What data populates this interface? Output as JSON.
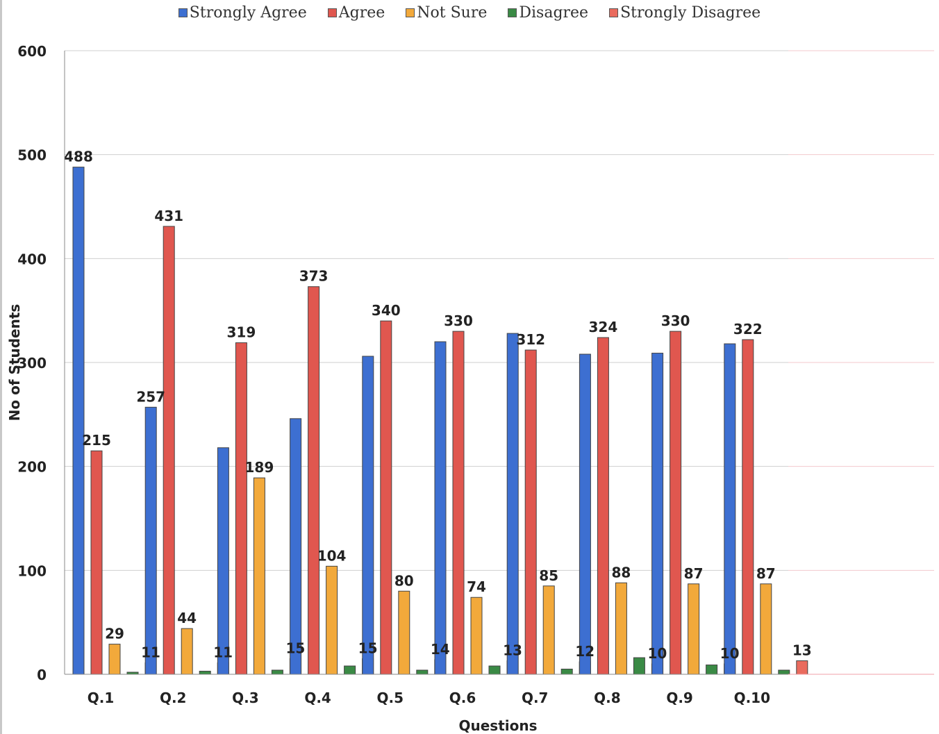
{
  "chart_data": {
    "type": "bar",
    "title": "",
    "xlabel": "Questions",
    "ylabel": "No of Students",
    "ylim": [
      0,
      600
    ],
    "yticks": [
      0,
      100,
      200,
      300,
      400,
      500,
      600
    ],
    "grid": true,
    "legend_position": "top",
    "categories": [
      "Q.1",
      "Q.2",
      "Q.3",
      "Q.4",
      "Q.5",
      "Q.6",
      "Q.7",
      "Q.8",
      "Q.9",
      "Q.10"
    ],
    "series": [
      {
        "name": "Strongly Agree",
        "color": "#3d6fd1",
        "values": [
          488,
          257,
          218,
          246,
          306,
          320,
          328,
          308,
          309,
          318
        ],
        "labels": [
          "488",
          "257",
          "",
          "",
          "",
          "",
          "",
          "",
          "",
          ""
        ]
      },
      {
        "name": "Agree",
        "color": "#e0574f",
        "values": [
          215,
          431,
          319,
          373,
          340,
          330,
          312,
          324,
          330,
          322
        ],
        "labels": [
          "215",
          "431",
          "319",
          "373",
          "340",
          "330",
          "312",
          "324",
          "330",
          "322"
        ]
      },
      {
        "name": "Not Sure",
        "color": "#f2a93b",
        "values": [
          29,
          44,
          189,
          104,
          80,
          74,
          85,
          88,
          87,
          87
        ],
        "labels": [
          "29",
          "44",
          "189",
          "104",
          "80",
          "74",
          "85",
          "88",
          "87",
          "87"
        ]
      },
      {
        "name": "Disagree",
        "color": "#3a8a45",
        "values": [
          2,
          3,
          4,
          8,
          4,
          8,
          5,
          16,
          9,
          4
        ],
        "labels": [
          "",
          "",
          "",
          "",
          "",
          "",
          "",
          "",
          "",
          ""
        ]
      },
      {
        "name": "Strongly Disagree",
        "color": "#ea6b5e",
        "values": [
          11,
          11,
          15,
          15,
          14,
          13,
          12,
          10,
          10,
          13
        ],
        "labels": [
          "11",
          "11",
          "15",
          "15",
          "14",
          "13",
          "12",
          "10",
          "10",
          "13"
        ]
      }
    ]
  }
}
